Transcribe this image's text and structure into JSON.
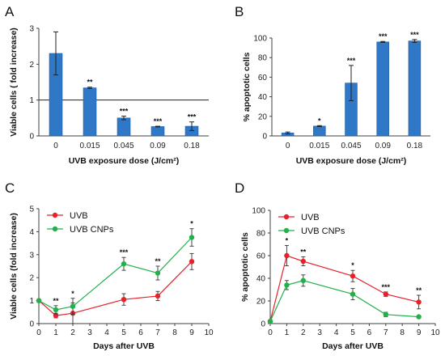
{
  "chart_data": [
    {
      "panel": "A",
      "type": "bar",
      "title": "",
      "xlabel": "UVB exposure dose (J/cm²)",
      "ylabel": "Viable cells ( fold increase)",
      "categories": [
        "0",
        "0.015",
        "0.045",
        "0.09",
        "0.18"
      ],
      "values": [
        2.3,
        1.34,
        0.5,
        0.26,
        0.27
      ],
      "errors": [
        0.6,
        0.02,
        0.05,
        0.01,
        0.12
      ],
      "significance": [
        "",
        "**",
        "***",
        "***",
        "***"
      ],
      "ylim": [
        0,
        3
      ],
      "yticks": [
        "0",
        "1",
        "2",
        "3"
      ],
      "reference_line": 1,
      "bar_color": "#2f78c8",
      "grid": false
    },
    {
      "panel": "B",
      "type": "bar",
      "title": "",
      "xlabel": "UVB exposure dose (J/cm²)",
      "ylabel": "% apoptotic cells",
      "categories": [
        "0",
        "0.015",
        "0.045",
        "0.09",
        "0.18"
      ],
      "values": [
        3,
        10,
        54,
        96,
        97
      ],
      "errors": [
        1,
        0.5,
        18,
        0.5,
        1.5
      ],
      "significance": [
        "",
        "*",
        "***",
        "***",
        "***"
      ],
      "ylim": [
        0,
        100
      ],
      "yticks": [
        "0",
        "20",
        "40",
        "60",
        "80",
        "100"
      ],
      "bar_color": "#2f78c8",
      "grid": false
    },
    {
      "panel": "C",
      "type": "line",
      "title": "",
      "xlabel": "Days after UVB",
      "ylabel": "Viable cells (fold increase)",
      "xlim": [
        0,
        10
      ],
      "ylim": [
        0,
        5
      ],
      "xticks": [
        "0",
        "1",
        "2",
        "3",
        "4",
        "5",
        "6",
        "7",
        "8",
        "9",
        "10"
      ],
      "yticks": [
        "0",
        "1",
        "2",
        "3",
        "4",
        "5"
      ],
      "legend_position": "top-left",
      "x": [
        0,
        1,
        2,
        5,
        7,
        9
      ],
      "series": [
        {
          "name": "UVB",
          "color": "#e8202a",
          "values": [
            1.0,
            0.35,
            0.45,
            1.05,
            1.2,
            2.7
          ],
          "errors": [
            0,
            0.1,
            0.45,
            0.25,
            0.2,
            0.35
          ]
        },
        {
          "name": "UVB CNPs",
          "color": "#22b04b",
          "values": [
            1.0,
            0.6,
            0.75,
            2.6,
            2.2,
            3.75
          ],
          "errors": [
            0,
            0.18,
            0.35,
            0.28,
            0.3,
            0.38
          ]
        }
      ],
      "significance": [
        "",
        "**",
        "*",
        "***",
        "**",
        "*"
      ]
    },
    {
      "panel": "D",
      "type": "line",
      "title": "",
      "xlabel": "Days after UVB",
      "ylabel": "% apoptotic cells",
      "xlim": [
        0,
        10
      ],
      "ylim": [
        0,
        100
      ],
      "xticks": [
        "0",
        "1",
        "2",
        "3",
        "4",
        "5",
        "6",
        "7",
        "8",
        "9",
        "10"
      ],
      "yticks": [
        "0",
        "20",
        "40",
        "60",
        "80",
        "100"
      ],
      "legend_position": "top-left",
      "x": [
        0,
        1,
        2,
        5,
        7,
        9
      ],
      "series": [
        {
          "name": "UVB",
          "color": "#e8202a",
          "values": [
            2,
            60,
            55,
            42,
            26,
            19
          ],
          "errors": [
            1,
            9,
            4,
            5,
            2,
            6
          ]
        },
        {
          "name": "UVB CNPs",
          "color": "#22b04b",
          "values": [
            2,
            34,
            38,
            26,
            8,
            6
          ],
          "errors": [
            1,
            4,
            5,
            5,
            2,
            1
          ]
        }
      ],
      "significance": [
        "",
        "*",
        "**",
        "*",
        "***",
        "**"
      ]
    }
  ],
  "panels": [
    {
      "letter": "A"
    },
    {
      "letter": "B"
    },
    {
      "letter": "C"
    },
    {
      "letter": "D"
    }
  ]
}
